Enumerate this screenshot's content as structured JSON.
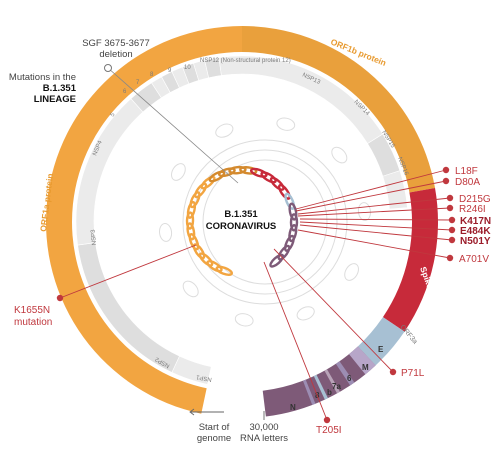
{
  "colors": {
    "orf1a": "#f2a541",
    "orf1b": "#e9a03c",
    "spike": "#c72a3a",
    "orf3a": "#a7c0d3",
    "structural": "#7e5a78",
    "inner_ring": "#e5e5e5",
    "mutation_line": "#c0383e",
    "mutation_text": "#c0383e",
    "mutation_text_strong": "#9b1c2a",
    "protein_label_orf1": "#e89a2f",
    "protein_label_spike": "#c72a3a"
  },
  "center": {
    "line1": "B.1.351",
    "line2": "CORONAVIRUS"
  },
  "annotations": {
    "sgf_deletion_1": "SGF 3675-3677",
    "sgf_deletion_2": "deletion",
    "lineage_1": "Mutations in the",
    "lineage_2": "B.1.351",
    "lineage_3": "LINEAGE",
    "start_1": "Start of",
    "start_2": "genome",
    "end_1": "30,000",
    "end_2": "RNA letters"
  },
  "proteins": {
    "orf1b": "ORF1b protein",
    "orf1a": "ORF1a protein",
    "spike": "Spike protein",
    "orf3a": "ORF3a"
  },
  "inner_ring_labels": {
    "nsp12": "NSP12 (Non-structural protein 12)",
    "nsp13": "NSP13",
    "nsp14": "NSP14",
    "nsp15": "NSP15",
    "nsp16": "NSP16",
    "nsp4": "NSP4",
    "nsp3": "NSP3",
    "nsp2": "NSP2",
    "nsp1": "NSP1",
    "n5": "5",
    "n6": "6",
    "n7": "7",
    "n8": "8",
    "n9": "9",
    "n10": "10"
  },
  "structural_labels": {
    "e": "E",
    "m": "M",
    "six": "6",
    "seven_ab": "7a",
    "seven_b": "b",
    "eight": "8",
    "n": "N"
  },
  "mutations": {
    "l18f": "L18F",
    "d80a": "D80A",
    "d215g": "D215G",
    "r246i": "R246I",
    "k417n": "K417N",
    "e484k": "E484K",
    "n501y": "N501Y",
    "a701v": "A701V",
    "p71l": "P71L",
    "t205i": "T205I",
    "k1655n_1": "K1655N",
    "k1655n_2": "mutation"
  }
}
